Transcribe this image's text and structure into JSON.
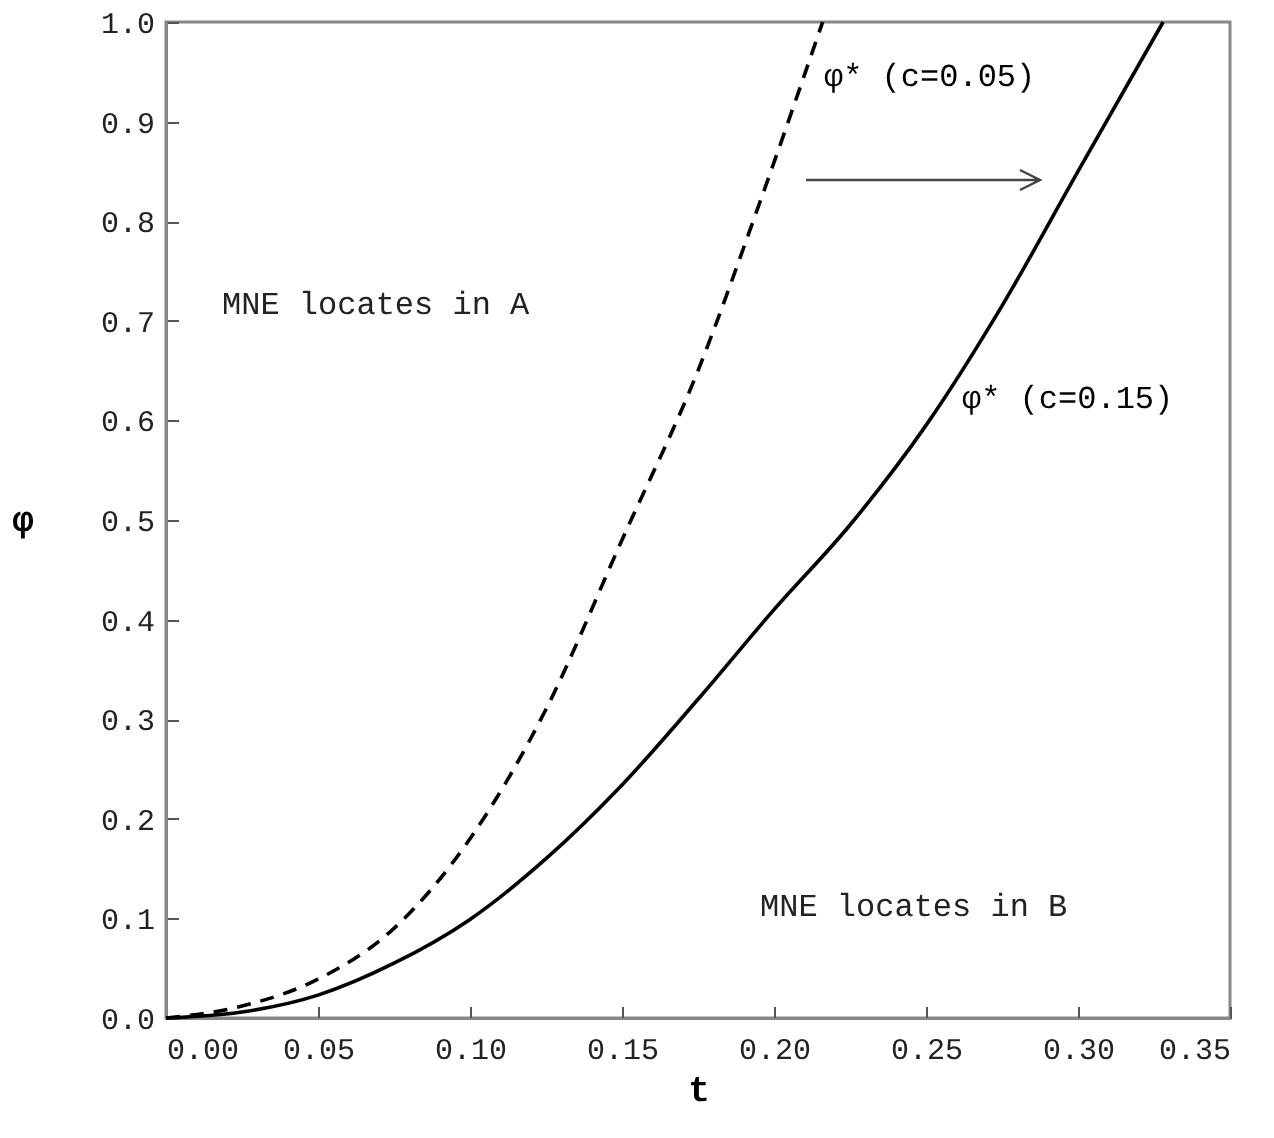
{
  "chart_data": {
    "type": "line",
    "xlabel": "t",
    "ylabel": "φ",
    "xlim": [
      0,
      0.35
    ],
    "ylim": [
      0,
      1
    ],
    "xticks": [
      {
        "value": 0,
        "label": "0.00"
      },
      0.05,
      {
        "value": 0.1,
        "label": "0.10"
      },
      0.15,
      {
        "value": 0.2,
        "label": "0.20"
      },
      0.25,
      {
        "value": 0.3,
        "label": "0.30"
      },
      0.35
    ],
    "yticks": [
      {
        "value": 0,
        "label": "0.0"
      },
      0.1,
      0.2,
      0.3,
      0.4,
      0.5,
      0.6,
      0.7,
      0.8,
      0.9,
      {
        "value": 1,
        "label": "1.0"
      }
    ],
    "series": [
      {
        "name": "φ* (c=0.05)",
        "color": "#000000",
        "line_style": "dashed",
        "x": [
          0,
          0.025,
          0.05,
          0.075,
          0.1,
          0.125,
          0.15,
          0.175,
          0.195,
          0.216
        ],
        "values": [
          0,
          0.012,
          0.039,
          0.09,
          0.18,
          0.31,
          0.48,
          0.65,
          0.816,
          1.0
        ]
      },
      {
        "name": "φ* (c=0.15)",
        "color": "#000000",
        "line_style": "solid",
        "x": [
          0,
          0.025,
          0.05,
          0.075,
          0.1,
          0.125,
          0.15,
          0.175,
          0.2,
          0.225,
          0.25,
          0.275,
          0.3,
          0.328
        ],
        "values": [
          0,
          0.006,
          0.023,
          0.055,
          0.099,
          0.16,
          0.234,
          0.32,
          0.41,
          0.495,
          0.595,
          0.715,
          0.85,
          1.0
        ]
      }
    ],
    "annotations": [
      "MNE locates in A",
      "MNE locates in B"
    ]
  }
}
